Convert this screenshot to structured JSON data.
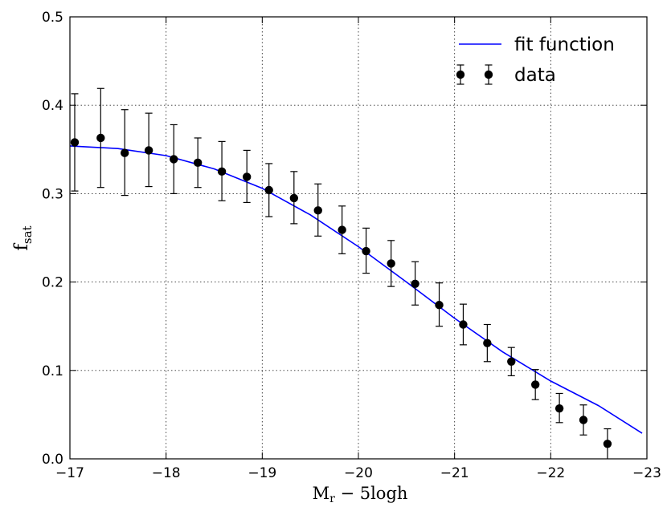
{
  "chart_data": {
    "type": "line",
    "xlabel_main": "M",
    "xlabel_sub": "r",
    "xlabel_rest": " − 5logh",
    "ylabel_main": "f",
    "ylabel_sub": "sat",
    "xlim": [
      -17,
      -23
    ],
    "ylim": [
      0,
      0.5
    ],
    "xticks": [
      -17,
      -18,
      -19,
      -20,
      -21,
      -22,
      -23
    ],
    "xtick_labels": [
      "−17",
      "−18",
      "−19",
      "−20",
      "−21",
      "−22",
      "−23"
    ],
    "yticks": [
      0,
      0.1,
      0.2,
      0.3,
      0.4,
      0.5
    ],
    "ytick_labels": [
      "0.0",
      "0.1",
      "0.2",
      "0.3",
      "0.4",
      "0.5"
    ],
    "grid": true,
    "legend_position": "top-right",
    "series": [
      {
        "name": "fit function",
        "kind": "line",
        "color": "#0000ff",
        "x": [
          -17.0,
          -17.5,
          -18.0,
          -18.5,
          -19.0,
          -19.5,
          -20.0,
          -20.5,
          -21.0,
          -21.5,
          -22.0,
          -22.5,
          -22.95
        ],
        "values": [
          0.354,
          0.351,
          0.343,
          0.328,
          0.306,
          0.276,
          0.24,
          0.2,
          0.159,
          0.121,
          0.088,
          0.06,
          0.029
        ]
      },
      {
        "name": "data",
        "kind": "errorbar",
        "color": "#000000",
        "x": [
          -17.05,
          -17.32,
          -17.57,
          -17.82,
          -18.08,
          -18.33,
          -18.58,
          -18.84,
          -19.07,
          -19.33,
          -19.58,
          -19.83,
          -20.08,
          -20.34,
          -20.59,
          -20.84,
          -21.09,
          -21.34,
          -21.59,
          -21.84,
          -22.09,
          -22.34,
          -22.59
        ],
        "values": [
          0.358,
          0.363,
          0.346,
          0.349,
          0.339,
          0.335,
          0.325,
          0.319,
          0.304,
          0.295,
          0.281,
          0.259,
          0.235,
          0.221,
          0.198,
          0.174,
          0.152,
          0.131,
          0.11,
          0.084,
          0.057,
          0.044,
          0.017
        ],
        "err_low": [
          0.055,
          0.056,
          0.048,
          0.041,
          0.039,
          0.028,
          0.033,
          0.029,
          0.03,
          0.029,
          0.029,
          0.027,
          0.025,
          0.026,
          0.024,
          0.024,
          0.023,
          0.021,
          0.016,
          0.017,
          0.016,
          0.017,
          0.017
        ],
        "err_high": [
          0.055,
          0.056,
          0.049,
          0.042,
          0.039,
          0.028,
          0.034,
          0.03,
          0.03,
          0.03,
          0.03,
          0.027,
          0.026,
          0.026,
          0.025,
          0.025,
          0.023,
          0.021,
          0.016,
          0.017,
          0.017,
          0.017,
          0.017
        ]
      }
    ]
  }
}
